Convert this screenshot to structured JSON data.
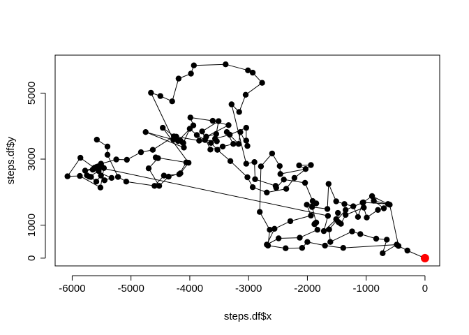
{
  "chart_data": {
    "type": "scatter",
    "title": "",
    "xlabel": "steps.df$x",
    "ylabel": "steps.df$y",
    "xlim": [
      -6290,
      250
    ],
    "ylim": [
      -235,
      6150
    ],
    "grid": false,
    "x_ticks": [
      -6000,
      -5000,
      -4000,
      -3000,
      -2000,
      -1000,
      0
    ],
    "y_ticks": [
      0,
      1000,
      3000,
      5000
    ],
    "x_tick_labels": [
      "-6000",
      "-5000",
      "-4000",
      "-3000",
      "-2000",
      "-1000",
      "0"
    ],
    "y_tick_labels": [
      "0",
      "1000",
      "3000",
      "5000"
    ],
    "connect_points": true,
    "point_color": "#000000",
    "highlight_color": "#ff0000",
    "highlight": {
      "x": 0,
      "y": 0
    },
    "series": [
      {
        "points": [
          [
            -5580,
            3590
          ],
          [
            -5400,
            3380
          ],
          [
            -5400,
            3130
          ],
          [
            -5220,
            2460
          ],
          [
            -5080,
            2320
          ],
          [
            -4600,
            2190
          ],
          [
            -4440,
            2500
          ],
          [
            -4180,
            2540
          ],
          [
            -4060,
            2900
          ],
          [
            -4580,
            3050
          ],
          [
            -4540,
            3030
          ],
          [
            -4700,
            2720
          ],
          [
            -4520,
            2190
          ],
          [
            -4360,
            2470
          ],
          [
            -4160,
            2570
          ],
          [
            -4020,
            2890
          ],
          [
            -4460,
            3950
          ],
          [
            -4160,
            3560
          ],
          [
            -4110,
            3490
          ],
          [
            -4000,
            3920
          ],
          [
            -3880,
            3730
          ],
          [
            -3740,
            3580
          ],
          [
            -3540,
            3540
          ],
          [
            -3570,
            3620
          ],
          [
            -3320,
            3740
          ],
          [
            -3040,
            3950
          ],
          [
            -3040,
            3560
          ],
          [
            -3020,
            3400
          ],
          [
            -3140,
            3820
          ],
          [
            -3170,
            3460
          ],
          [
            -3370,
            3820
          ],
          [
            -3260,
            3460
          ],
          [
            -3440,
            3380
          ],
          [
            -3650,
            3290
          ],
          [
            -3790,
            3840
          ],
          [
            -3510,
            4150
          ],
          [
            -3550,
            3760
          ],
          [
            -3720,
            3680
          ],
          [
            -3340,
            4030
          ],
          [
            -3610,
            4160
          ],
          [
            -3990,
            4260
          ],
          [
            -3940,
            4020
          ],
          [
            -4200,
            3550
          ],
          [
            -4100,
            3350
          ],
          [
            -4750,
            3820
          ],
          [
            -4280,
            3590
          ],
          [
            -4660,
            5010
          ],
          [
            -4500,
            4910
          ],
          [
            -4300,
            4750
          ],
          [
            -4190,
            5440
          ],
          [
            -3980,
            5590
          ],
          [
            -3930,
            5840
          ],
          [
            -3390,
            5870
          ],
          [
            -3010,
            5690
          ],
          [
            -2930,
            5620
          ],
          [
            -2770,
            5310
          ],
          [
            -3050,
            4950
          ],
          [
            -3160,
            4430
          ],
          [
            -3290,
            4660
          ],
          [
            -3040,
            2860
          ],
          [
            -2900,
            2910
          ],
          [
            -2890,
            2390
          ],
          [
            -2540,
            2190
          ],
          [
            -2530,
            2130
          ],
          [
            -2400,
            2380
          ],
          [
            -2040,
            2280
          ],
          [
            -1910,
            1730
          ],
          [
            -1850,
            1660
          ],
          [
            -2010,
            1620
          ],
          [
            -1940,
            1290
          ],
          [
            -2290,
            1120
          ],
          [
            -2560,
            890
          ],
          [
            -2690,
            410
          ],
          [
            -2490,
            600
          ],
          [
            -2130,
            620
          ],
          [
            -1830,
            860
          ],
          [
            -1870,
            1050
          ],
          [
            -1880,
            1030
          ],
          [
            -1850,
            1080
          ],
          [
            -1920,
            1550
          ],
          [
            -1660,
            1490
          ],
          [
            -1640,
            2250
          ],
          [
            -1510,
            1720
          ],
          [
            -1370,
            1640
          ],
          [
            -1220,
            1570
          ],
          [
            -1140,
            1250
          ],
          [
            -1060,
            1680
          ],
          [
            -900,
            1880
          ],
          [
            -630,
            1640
          ],
          [
            -1050,
            1690
          ],
          [
            -1350,
            1460
          ],
          [
            -1630,
            870
          ],
          [
            -1610,
            490
          ],
          [
            -1240,
            810
          ],
          [
            -1100,
            730
          ],
          [
            -830,
            590
          ],
          [
            -650,
            560
          ],
          [
            -720,
            150
          ],
          [
            -480,
            410
          ],
          [
            -1390,
            310
          ],
          [
            -1700,
            380
          ],
          [
            -2000,
            490
          ],
          [
            -2090,
            310
          ],
          [
            -2370,
            300
          ],
          [
            -2670,
            380
          ],
          [
            -2640,
            860
          ],
          [
            -2810,
            1400
          ],
          [
            -2790,
            2780
          ],
          [
            -2600,
            3170
          ],
          [
            -2470,
            2790
          ],
          [
            -2460,
            2550
          ],
          [
            -2030,
            2700
          ],
          [
            -2140,
            2810
          ],
          [
            -1940,
            2820
          ],
          [
            -2220,
            2430
          ],
          [
            -2360,
            2100
          ],
          [
            -2690,
            1990
          ],
          [
            -2930,
            2150
          ],
          [
            -3020,
            2450
          ],
          [
            -3310,
            2940
          ],
          [
            -3530,
            3280
          ],
          [
            -3640,
            3490
          ],
          [
            -3840,
            3560
          ],
          [
            -4230,
            3680
          ],
          [
            -4270,
            3690
          ],
          [
            -4630,
            3280
          ],
          [
            -4830,
            3210
          ],
          [
            -5070,
            2980
          ],
          [
            -5250,
            2990
          ],
          [
            -5510,
            2860
          ],
          [
            -5510,
            2500
          ],
          [
            -5590,
            2320
          ],
          [
            -5680,
            2460
          ],
          [
            -5750,
            2510
          ],
          [
            -5710,
            2470
          ],
          [
            -5460,
            2730
          ],
          [
            -5520,
            2140
          ],
          [
            -5870,
            2490
          ],
          [
            -6080,
            2480
          ],
          [
            -5860,
            3040
          ],
          [
            -5550,
            2640
          ],
          [
            -5500,
            2780
          ],
          [
            -5560,
            2780
          ],
          [
            -5450,
            2360
          ],
          [
            -5330,
            2430
          ],
          [
            -5650,
            2680
          ],
          [
            -5780,
            2650
          ],
          [
            -5620,
            2740
          ],
          [
            -5590,
            2760
          ],
          [
            -1650,
            1280
          ],
          [
            -1720,
            820
          ],
          [
            -1510,
            1180
          ],
          [
            -1480,
            1370
          ],
          [
            -1470,
            1090
          ],
          [
            -1430,
            1040
          ],
          [
            -1350,
            1310
          ],
          [
            -1040,
            1530
          ],
          [
            -990,
            1230
          ],
          [
            -800,
            1460
          ],
          [
            -700,
            1510
          ],
          [
            -870,
            1740
          ],
          [
            -600,
            1620
          ],
          [
            -450,
            370
          ],
          [
            -300,
            230
          ],
          [
            0,
            0
          ]
        ]
      }
    ]
  }
}
